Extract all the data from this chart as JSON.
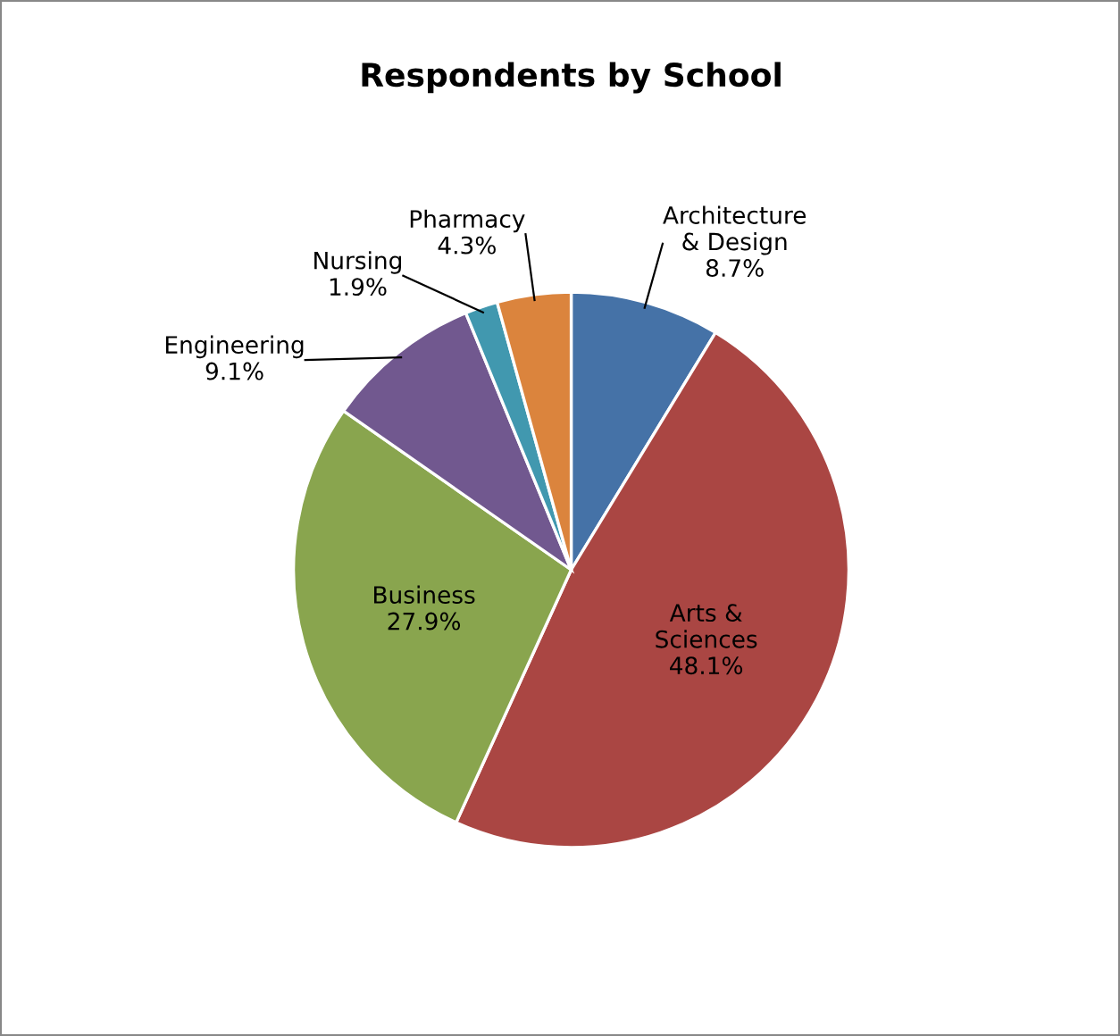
{
  "chart_data": {
    "type": "pie",
    "title": "Respondents by School",
    "categories": [
      "Architecture\n& Design",
      "Arts &\nSciences",
      "Business",
      "Engineering",
      "Nursing",
      "Pharmacy"
    ],
    "values": [
      8.7,
      48.1,
      27.9,
      9.1,
      1.9,
      4.3
    ],
    "value_labels": [
      "8.7%",
      "48.1%",
      "27.9%",
      "9.1%",
      "1.9%",
      "4.3%"
    ],
    "colors": [
      "#4572a7",
      "#aa4643",
      "#89a54e",
      "#71588f",
      "#4198af",
      "#db843d"
    ],
    "legend": false
  }
}
